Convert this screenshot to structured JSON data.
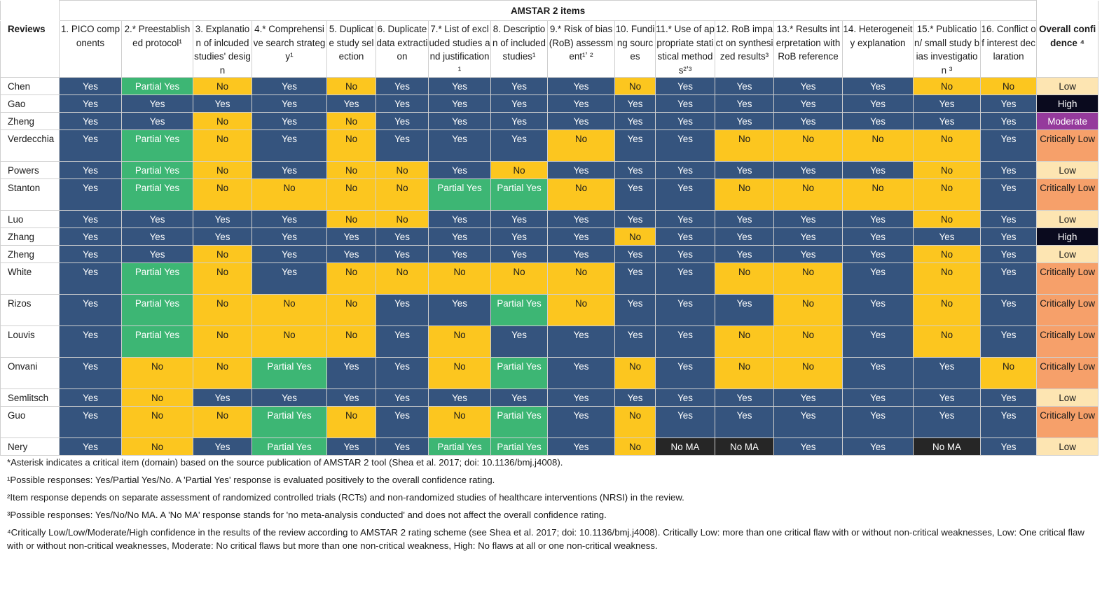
{
  "table": {
    "group_header": "AMSTAR 2 items",
    "reviews_header": "Reviews",
    "columns": [
      "1. PICO components",
      "2.* Preestablished protocol¹",
      "3. Explanation of inlcuded studies' design",
      "4.* Comprehensive search strategy¹",
      "5. Duplicate study selection",
      "6. Duplicate data extraction",
      "7.* List of excluded studies and justification ¹",
      "8. Description of included studies¹",
      "9.* Risk of bias (RoB) assessment¹ʼ ²",
      "10. Funding sources",
      "11.* Use of appropriate statistical methods²ʼ³",
      "12. RoB impact on synthesized results³",
      "13.* Results interpretation with RoB reference",
      "14. Heterogeneity explanation",
      "15.* Publication/ small study bias investigation ³",
      "16. Conflict of interest declaration"
    ],
    "overall_header": "Overall confidence ⁴",
    "rows": [
      {
        "review": "Chen",
        "cells": [
          "Yes",
          "Partial Yes",
          "No",
          "Yes",
          "No",
          "Yes",
          "Yes",
          "Yes",
          "Yes",
          "No",
          "Yes",
          "Yes",
          "Yes",
          "Yes",
          "No",
          "No"
        ],
        "overall": "Low"
      },
      {
        "review": "Gao",
        "cells": [
          "Yes",
          "Yes",
          "Yes",
          "Yes",
          "Yes",
          "Yes",
          "Yes",
          "Yes",
          "Yes",
          "Yes",
          "Yes",
          "Yes",
          "Yes",
          "Yes",
          "Yes",
          "Yes"
        ],
        "overall": "High"
      },
      {
        "review": "Zheng",
        "cells": [
          "Yes",
          "Yes",
          "No",
          "Yes",
          "No",
          "Yes",
          "Yes",
          "Yes",
          "Yes",
          "Yes",
          "Yes",
          "Yes",
          "Yes",
          "Yes",
          "Yes",
          "Yes"
        ],
        "overall": "Moderate"
      },
      {
        "review": "Verdecchia",
        "cells": [
          "Yes",
          "Partial Yes",
          "No",
          "Yes",
          "No",
          "Yes",
          "Yes",
          "Yes",
          "No",
          "Yes",
          "Yes",
          "No",
          "No",
          "No",
          "No",
          "Yes"
        ],
        "overall": "Critically Low"
      },
      {
        "review": "Powers",
        "cells": [
          "Yes",
          "Partial Yes",
          "No",
          "Yes",
          "No",
          "No",
          "Yes",
          "No",
          "Yes",
          "Yes",
          "Yes",
          "Yes",
          "Yes",
          "Yes",
          "No",
          "Yes"
        ],
        "overall": "Low"
      },
      {
        "review": "Stanton",
        "cells": [
          "Yes",
          "Partial Yes",
          "No",
          "No",
          "No",
          "No",
          "Partial Yes",
          "Partial Yes",
          "No",
          "Yes",
          "Yes",
          "No",
          "No",
          "No",
          "No",
          "Yes"
        ],
        "overall": "Critically Low"
      },
      {
        "review": "Luo",
        "cells": [
          "Yes",
          "Yes",
          "Yes",
          "Yes",
          "No",
          "No",
          "Yes",
          "Yes",
          "Yes",
          "Yes",
          "Yes",
          "Yes",
          "Yes",
          "Yes",
          "No",
          "Yes"
        ],
        "overall": "Low"
      },
      {
        "review": "Zhang",
        "cells": [
          "Yes",
          "Yes",
          "Yes",
          "Yes",
          "Yes",
          "Yes",
          "Yes",
          "Yes",
          "Yes",
          "No",
          "Yes",
          "Yes",
          "Yes",
          "Yes",
          "Yes",
          "Yes"
        ],
        "overall": "High"
      },
      {
        "review": "Zheng",
        "cells": [
          "Yes",
          "Yes",
          "No",
          "Yes",
          "Yes",
          "Yes",
          "Yes",
          "Yes",
          "Yes",
          "Yes",
          "Yes",
          "Yes",
          "Yes",
          "Yes",
          "No",
          "Yes"
        ],
        "overall": "Low"
      },
      {
        "review": "White",
        "cells": [
          "Yes",
          "Partial Yes",
          "No",
          "Yes",
          "No",
          "No",
          "No",
          "No",
          "No",
          "Yes",
          "Yes",
          "No",
          "No",
          "Yes",
          "No",
          "Yes"
        ],
        "overall": "Critically Low"
      },
      {
        "review": "Rizos",
        "cells": [
          "Yes",
          "Partial Yes",
          "No",
          "No",
          "No",
          "Yes",
          "Yes",
          "Partial Yes",
          "No",
          "Yes",
          "Yes",
          "Yes",
          "No",
          "Yes",
          "No",
          "Yes"
        ],
        "overall": "Critically Low"
      },
      {
        "review": "Louvis",
        "cells": [
          "Yes",
          "Partial Yes",
          "No",
          "No",
          "No",
          "Yes",
          "No",
          "Yes",
          "Yes",
          "Yes",
          "Yes",
          "No",
          "No",
          "Yes",
          "No",
          "Yes"
        ],
        "overall": "Critically Low"
      },
      {
        "review": "Onvani",
        "cells": [
          "Yes",
          "No",
          "No",
          "Partial Yes",
          "Yes",
          "Yes",
          "No",
          "Partial Yes",
          "Yes",
          "No",
          "Yes",
          "No",
          "No",
          "Yes",
          "Yes",
          "No"
        ],
        "overall": "Critically Low"
      },
      {
        "review": "Semlitsch",
        "cells": [
          "Yes",
          "No",
          "Yes",
          "Yes",
          "Yes",
          "Yes",
          "Yes",
          "Yes",
          "Yes",
          "Yes",
          "Yes",
          "Yes",
          "Yes",
          "Yes",
          "Yes",
          "Yes"
        ],
        "overall": "Low"
      },
      {
        "review": "Guo",
        "cells": [
          "Yes",
          "No",
          "No",
          "Partial Yes",
          "No",
          "Yes",
          "No",
          "Partial Yes",
          "Yes",
          "No",
          "Yes",
          "Yes",
          "Yes",
          "Yes",
          "Yes",
          "Yes"
        ],
        "overall": "Critically Low"
      },
      {
        "review": "Nery",
        "cells": [
          "Yes",
          "No",
          "Yes",
          "Partial Yes",
          "Yes",
          "Yes",
          "Partial Yes",
          "Partial Yes",
          "Yes",
          "No",
          "No MA",
          "No MA",
          "Yes",
          "Yes",
          "No MA",
          "Yes"
        ],
        "overall": "Low"
      }
    ]
  },
  "footnotes": [
    "*Asterisk indicates a critical item (domain) based on the source publication of AMSTAR 2 tool (Shea et al. 2017; doi: 10.1136/bmj.j4008).",
    "¹Possible responses: Yes/Partial Yes/No. A 'Partial Yes' response is evaluated positively to the overall confidence rating.",
    "²Item response depends on separate assessment of randomized controlled trials (RCTs) and non-randomized studies of healthcare interventions (NRSI) in the review.",
    "³Possible responses: Yes/No/No MA. A 'No MA' response stands for 'no meta-analysis conducted' and does not affect the overall confidence rating.",
    "⁴Critically Low/Low/Moderate/High confidence in the results of the review according to AMSTAR 2 rating scheme (see Shea et al. 2017; doi: 10.1136/bmj.j4008). Critically Low: more than one critical flaw with or without non-critical weaknesses, Low: One critical flaw with or without non-critical weaknesses, Moderate: No critical flaws but more than one non-critical weakness, High: No flaws at all or one non-critical weakness."
  ],
  "colors": {
    "yes": "#35547e",
    "partial_yes": "#3db674",
    "no": "#fcc61f",
    "no_ma": "#262626",
    "overall_low": "#fde5b2",
    "overall_high": "#0a0a1e",
    "overall_moderate": "#953a9c",
    "overall_critically_low": "#f6a06a"
  }
}
